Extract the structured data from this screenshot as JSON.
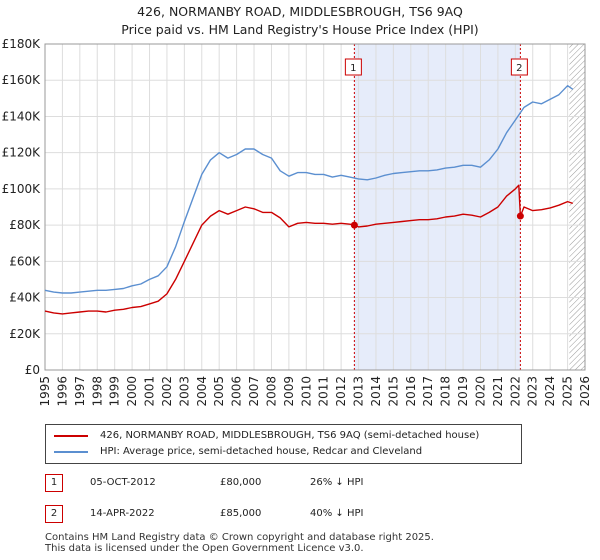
{
  "header": {
    "line1": "426, NORMANBY ROAD, MIDDLESBROUGH, TS6 9AQ",
    "line2": "Price paid vs. HM Land Registry's House Price Index (HPI)"
  },
  "colors": {
    "property": "#cc0000",
    "hpi": "#5b8fd0",
    "shade": "#e6ecfa",
    "marker_border": "#cc0000"
  },
  "chart_data": {
    "type": "line",
    "xlim": [
      1995,
      2026
    ],
    "ylim": [
      0,
      180000
    ],
    "yticks": [
      0,
      20000,
      40000,
      60000,
      80000,
      100000,
      120000,
      140000,
      160000,
      180000
    ],
    "ytick_labels": [
      "£0",
      "£20K",
      "£40K",
      "£60K",
      "£80K",
      "£100K",
      "£120K",
      "£140K",
      "£160K",
      "£180K"
    ],
    "xticks": [
      1995,
      1996,
      1997,
      1998,
      1999,
      2000,
      2001,
      2002,
      2003,
      2004,
      2005,
      2006,
      2007,
      2008,
      2009,
      2010,
      2011,
      2012,
      2013,
      2014,
      2015,
      2016,
      2017,
      2018,
      2019,
      2020,
      2021,
      2022,
      2023,
      2024,
      2025,
      2026
    ],
    "grid": true,
    "shaded_range": [
      2012.76,
      2022.29
    ],
    "hatched_from": 2025.1,
    "series": [
      {
        "name": "426, NORMANBY ROAD, MIDDLESBROUGH, TS6 9AQ (semi-detached house)",
        "x": [
          1995.0,
          1995.5,
          1996.0,
          1996.5,
          1997.0,
          1997.5,
          1998.0,
          1998.5,
          1999.0,
          1999.5,
          2000.0,
          2000.5,
          2001.0,
          2001.5,
          2002.0,
          2002.5,
          2003.0,
          2003.5,
          2004.0,
          2004.5,
          2005.0,
          2005.5,
          2006.0,
          2006.5,
          2007.0,
          2007.5,
          2008.0,
          2008.5,
          2009.0,
          2009.5,
          2010.0,
          2010.5,
          2011.0,
          2011.5,
          2012.0,
          2012.5,
          2012.76,
          2013.0,
          2013.5,
          2014.0,
          2014.5,
          2015.0,
          2015.5,
          2016.0,
          2016.5,
          2017.0,
          2017.5,
          2018.0,
          2018.5,
          2019.0,
          2019.5,
          2020.0,
          2020.5,
          2021.0,
          2021.5,
          2022.0,
          2022.2,
          2022.29,
          2022.5,
          2023.0,
          2023.5,
          2024.0,
          2024.5,
          2025.0,
          2025.3
        ],
        "values": [
          32500,
          31500,
          31000,
          31500,
          32000,
          32500,
          32500,
          32000,
          33000,
          33500,
          34500,
          35000,
          36500,
          38000,
          42000,
          50000,
          60000,
          70000,
          80000,
          85000,
          88000,
          86000,
          88000,
          90000,
          89000,
          87000,
          87000,
          84000,
          79000,
          81000,
          81500,
          81000,
          81000,
          80500,
          81000,
          80500,
          80000,
          79000,
          79500,
          80500,
          81000,
          81500,
          82000,
          82500,
          83000,
          83000,
          83500,
          84500,
          85000,
          86000,
          85500,
          84500,
          87000,
          90000,
          96000,
          100000,
          102000,
          85000,
          90000,
          88000,
          88500,
          89500,
          91000,
          93000,
          92000
        ]
      },
      {
        "name": "HPI: Average price, semi-detached house, Redcar and Cleveland",
        "x": [
          1995.0,
          1995.5,
          1996.0,
          1996.5,
          1997.0,
          1997.5,
          1998.0,
          1998.5,
          1999.0,
          1999.5,
          2000.0,
          2000.5,
          2001.0,
          2001.5,
          2002.0,
          2002.5,
          2003.0,
          2003.5,
          2004.0,
          2004.5,
          2005.0,
          2005.5,
          2006.0,
          2006.5,
          2007.0,
          2007.5,
          2008.0,
          2008.5,
          2009.0,
          2009.5,
          2010.0,
          2010.5,
          2011.0,
          2011.5,
          2012.0,
          2012.5,
          2013.0,
          2013.5,
          2014.0,
          2014.5,
          2015.0,
          2015.5,
          2016.0,
          2016.5,
          2017.0,
          2017.5,
          2018.0,
          2018.5,
          2019.0,
          2019.5,
          2020.0,
          2020.5,
          2021.0,
          2021.5,
          2022.0,
          2022.5,
          2023.0,
          2023.5,
          2024.0,
          2024.5,
          2025.0,
          2025.3
        ],
        "values": [
          44000,
          43000,
          42500,
          42500,
          43000,
          43500,
          44000,
          44000,
          44500,
          45000,
          46500,
          47500,
          50000,
          52000,
          57000,
          68000,
          82000,
          95000,
          108000,
          116000,
          120000,
          117000,
          119000,
          122000,
          122000,
          119000,
          117000,
          110000,
          107000,
          109000,
          109000,
          108000,
          108000,
          106500,
          107500,
          106500,
          105500,
          105000,
          106000,
          107500,
          108500,
          109000,
          109500,
          110000,
          110000,
          110500,
          111500,
          112000,
          113000,
          113000,
          112000,
          116000,
          122000,
          131000,
          138000,
          145000,
          148000,
          147000,
          149500,
          152000,
          157000,
          155000
        ]
      }
    ],
    "annotations": [
      {
        "label": "1",
        "x": 2012.76,
        "y": 80000
      },
      {
        "label": "2",
        "x": 2022.29,
        "y": 85000
      }
    ]
  },
  "legend": {
    "property": "426, NORMANBY ROAD, MIDDLESBROUGH, TS6 9AQ (semi-detached house)",
    "hpi": "HPI: Average price, semi-detached house, Redcar and Cleveland"
  },
  "transactions": [
    {
      "num": "1",
      "date": "05-OCT-2012",
      "price": "£80,000",
      "hpi": "26% ↓ HPI"
    },
    {
      "num": "2",
      "date": "14-APR-2022",
      "price": "£85,000",
      "hpi": "40% ↓ HPI"
    }
  ],
  "footer": {
    "line1": "Contains HM Land Registry data © Crown copyright and database right 2025.",
    "line2": "This data is licensed under the Open Government Licence v3.0."
  }
}
